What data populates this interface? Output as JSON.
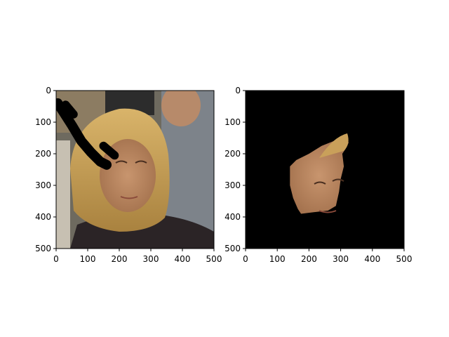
{
  "chart_data": [
    {
      "type": "image",
      "title": "",
      "xlabel": "",
      "ylabel": "",
      "xlim": [
        0,
        500
      ],
      "ylim": [
        500,
        0
      ],
      "xticks": [
        0,
        100,
        200,
        300,
        400,
        500
      ],
      "yticks": [
        0,
        100,
        200,
        300,
        400,
        500
      ],
      "content": "photo of woman with black stroke mask occluding upper-left region",
      "mask_stroke": [
        [
          5,
          40
        ],
        [
          50,
          110
        ],
        [
          80,
          160
        ],
        [
          110,
          195
        ],
        [
          140,
          225
        ],
        [
          160,
          235
        ]
      ],
      "mask_stroke_2": [
        [
          30,
          45
        ],
        [
          55,
          75
        ]
      ],
      "mask_stroke_3": [
        [
          150,
          175
        ],
        [
          185,
          205
        ]
      ]
    },
    {
      "type": "image",
      "title": "",
      "xlabel": "",
      "ylabel": "",
      "xlim": [
        0,
        500
      ],
      "ylim": [
        500,
        0
      ],
      "xticks": [
        0,
        100,
        200,
        300,
        400,
        500
      ],
      "yticks": [
        0,
        100,
        200,
        300,
        400,
        500
      ],
      "content": "segmented face region on black background",
      "background": "#000000",
      "region_outline": [
        [
          140,
          240
        ],
        [
          160,
          220
        ],
        [
          200,
          200
        ],
        [
          240,
          175
        ],
        [
          290,
          155
        ],
        [
          320,
          148
        ],
        [
          325,
          165
        ],
        [
          315,
          185
        ],
        [
          305,
          200
        ],
        [
          310,
          240
        ],
        [
          300,
          280
        ],
        [
          295,
          320
        ],
        [
          285,
          365
        ],
        [
          260,
          380
        ],
        [
          215,
          385
        ],
        [
          175,
          390
        ],
        [
          165,
          375
        ],
        [
          150,
          340
        ],
        [
          140,
          300
        ]
      ]
    }
  ],
  "colors": {
    "axis": "#000000",
    "skin": "#b98762",
    "hair": "#c9a05a",
    "background_photo": "#7c7466"
  }
}
